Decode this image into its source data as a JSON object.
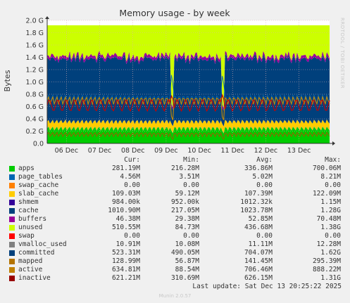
{
  "chart_data": {
    "type": "area",
    "title": "Memory usage - by week",
    "ylabel": "Bytes",
    "side_label": "RRDTOOL / TOBI OETIKER",
    "ylim": [
      0,
      2.0
    ],
    "y_ticks": [
      "0.0",
      "0.2 G",
      "0.4 G",
      "0.6 G",
      "0.8 G",
      "1.0 G",
      "1.2 G",
      "1.4 G",
      "1.6 G",
      "1.8 G",
      "2.0 G"
    ],
    "y_tick_values": [
      0,
      0.2,
      0.4,
      0.6,
      0.8,
      1.0,
      1.2,
      1.4,
      1.6,
      1.8,
      2.0
    ],
    "x_ticks": [
      "06 Dec",
      "07 Dec",
      "08 Dec",
      "09 Dec",
      "10 Dec",
      "11 Dec",
      "12 Dec",
      "13 Dec"
    ],
    "x_range_days": [
      5.42,
      13.92
    ],
    "x_tick_days": [
      6,
      7,
      8,
      9,
      10,
      11,
      12,
      13
    ],
    "dips": [
      9.2,
      10.72
    ],
    "total_top": 1.92,
    "stack_typical": [
      {
        "name": "apps",
        "value": 0.24,
        "color": "#00cc00"
      },
      {
        "name": "page_tables",
        "value": 0.005,
        "color": "#0066b3"
      },
      {
        "name": "slab_cache",
        "value": 0.11,
        "color": "#ffcc00"
      },
      {
        "name": "shmem",
        "value": 0.001,
        "color": "#330099"
      },
      {
        "name": "cache",
        "value": 1.02,
        "color": "#00407c"
      },
      {
        "name": "buffers",
        "value": 0.05,
        "color": "#990099"
      },
      {
        "name": "unused",
        "value": 0.49,
        "color": "#ccff00"
      }
    ],
    "line_series": [
      {
        "name": "committed",
        "typical": 0.7,
        "color": "#0066b3"
      },
      {
        "name": "active",
        "typical": 0.72,
        "color": "#c98a00"
      },
      {
        "name": "mapped",
        "typical": 0.14,
        "color": "#8f6700"
      },
      {
        "name": "inactive",
        "typical": 0.62,
        "color": "#cc0000"
      }
    ]
  },
  "legend": {
    "headers": {
      "cur": "Cur:",
      "min": "Min:",
      "avg": "Avg:",
      "max": "Max:"
    },
    "rows": [
      {
        "name": "apps",
        "color": "#00cc00",
        "cur": "281.19M",
        "min": "216.28M",
        "avg": "336.86M",
        "max": "700.06M"
      },
      {
        "name": "page_tables",
        "color": "#0066b3",
        "cur": "4.56M",
        "min": "3.51M",
        "avg": "5.02M",
        "max": "8.21M"
      },
      {
        "name": "swap_cache",
        "color": "#ff8000",
        "cur": "0.00",
        "min": "0.00",
        "avg": "0.00",
        "max": "0.00"
      },
      {
        "name": "slab_cache",
        "color": "#ffcc00",
        "cur": "109.03M",
        "min": "59.12M",
        "avg": "107.39M",
        "max": "122.09M"
      },
      {
        "name": "shmem",
        "color": "#330099",
        "cur": "984.00k",
        "min": "952.00k",
        "avg": "1012.32k",
        "max": "1.15M"
      },
      {
        "name": "cache",
        "color": "#00407c",
        "cur": "1010.90M",
        "min": "217.05M",
        "avg": "1023.78M",
        "max": "1.28G"
      },
      {
        "name": "buffers",
        "color": "#990099",
        "cur": "46.38M",
        "min": "29.38M",
        "avg": "52.85M",
        "max": "70.48M"
      },
      {
        "name": "unused",
        "color": "#ccff00",
        "cur": "510.55M",
        "min": "84.73M",
        "avg": "436.68M",
        "max": "1.38G"
      },
      {
        "name": "swap",
        "color": "#ff0000",
        "cur": "0.00",
        "min": "0.00",
        "avg": "0.00",
        "max": "0.00"
      },
      {
        "name": "vmalloc_used",
        "color": "#808080",
        "cur": "10.91M",
        "min": "10.08M",
        "avg": "11.11M",
        "max": "12.28M"
      },
      {
        "name": "committed",
        "color": "#00407c",
        "cur": "523.31M",
        "min": "490.05M",
        "avg": "704.07M",
        "max": "1.62G"
      },
      {
        "name": "mapped",
        "color": "#b37300",
        "cur": "128.99M",
        "min": "56.87M",
        "avg": "141.45M",
        "max": "295.39M"
      },
      {
        "name": "active",
        "color": "#c08000",
        "cur": "634.81M",
        "min": "88.54M",
        "avg": "706.46M",
        "max": "888.22M"
      },
      {
        "name": "inactive",
        "color": "#990000",
        "cur": "621.21M",
        "min": "310.69M",
        "avg": "626.15M",
        "max": "1.31G"
      }
    ]
  },
  "footer": {
    "last_update": "Last update: Sat Dec 13 20:25:22 2025",
    "munin_version": "Munin 2.0.57"
  }
}
